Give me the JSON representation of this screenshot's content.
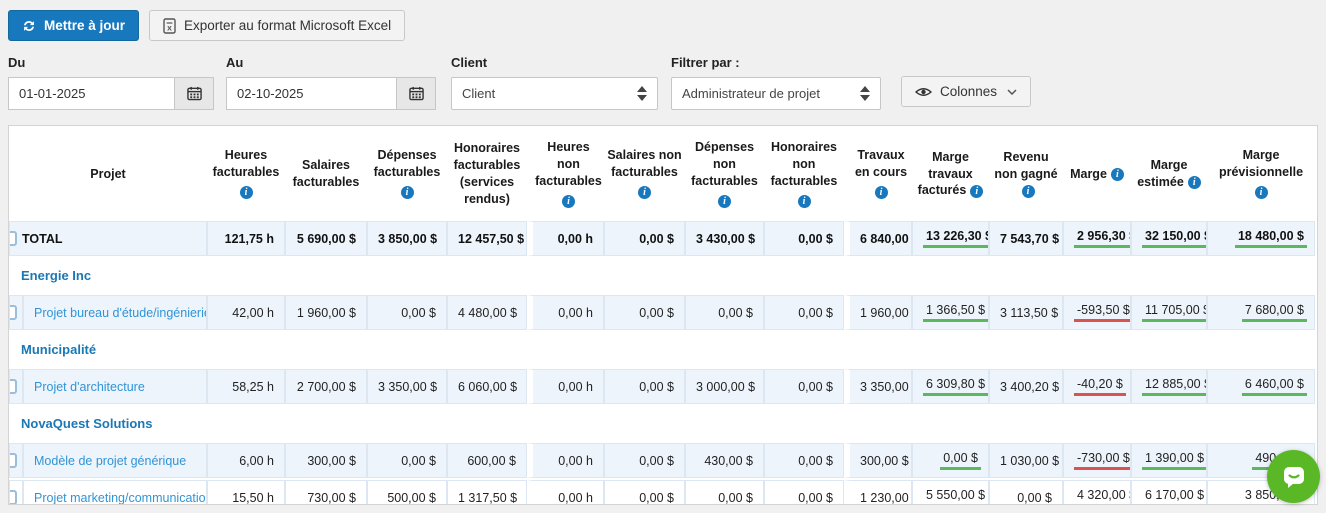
{
  "toolbar": {
    "update_label": "Mettre à jour",
    "export_label": "Exporter au format Microsoft Excel"
  },
  "filters": {
    "from": {
      "label": "Du",
      "value": "01-01-2025"
    },
    "to": {
      "label": "Au",
      "value": "02-10-2025"
    },
    "client": {
      "label": "Client",
      "selected": "Client"
    },
    "filter_by": {
      "label": "Filtrer par :",
      "selected": "Administrateur de projet"
    },
    "columns_button_label": "Colonnes"
  },
  "icons": {
    "refresh": "circular-arrows",
    "excel": "spreadsheet-file",
    "calendar": "calendar-grid",
    "eye": "eye",
    "chevron_down": "chevron-down",
    "select_arrows": "up-down-triangles",
    "info": "i",
    "chat": "speech-bubble-smile",
    "row_clip": "clipped-row-icon"
  },
  "colors": {
    "accent": "#1878be",
    "accent_border": "#13689e",
    "green_underline": "#5cb85c",
    "red_underline": "#d9534f",
    "project_link": "#3094d6",
    "group_blue": "#1a78b5",
    "stripe": "#eef4fb",
    "chat_green": "#5ab827"
  },
  "table": {
    "project_header": "Projet",
    "columns": [
      {
        "label": "Heures facturables",
        "info": "below"
      },
      {
        "label": "Salaires facturables",
        "info": null
      },
      {
        "label": "Dépenses facturables",
        "info": "below"
      },
      {
        "label": "Honoraires facturables (services rendus)",
        "info": null
      },
      {
        "label": "Heures non facturables",
        "info": "below"
      },
      {
        "label": "Salaires non facturables",
        "info": "below"
      },
      {
        "label": "Dépenses non facturables",
        "info": "below"
      },
      {
        "label": "Honoraires non facturables",
        "info": "below"
      },
      {
        "label": "Travaux en cours",
        "info": "below"
      },
      {
        "label": "Marge travaux facturés",
        "info": "inline"
      },
      {
        "label": "Revenu non gagné",
        "info": "inline"
      },
      {
        "label": "Marge",
        "info": "inline"
      },
      {
        "label": "Marge estimée",
        "info": "inline"
      },
      {
        "label": "Marge prévisionnelle",
        "info": "below"
      }
    ],
    "rows": [
      {
        "type": "total",
        "label": "TOTAL",
        "cells": [
          {
            "v": "121,75 h"
          },
          {
            "v": "5 690,00 $"
          },
          {
            "v": "3 850,00 $"
          },
          {
            "v": "12 457,50 $"
          },
          {
            "v": "0,00 h"
          },
          {
            "v": "0,00 $"
          },
          {
            "v": "3 430,00 $"
          },
          {
            "v": "0,00 $"
          },
          {
            "v": "6 840,00 $"
          },
          {
            "v": "13 226,30 $",
            "u": "green"
          },
          {
            "v": "7 543,70 $"
          },
          {
            "v": "2 956,30 $",
            "u": "green"
          },
          {
            "v": "32 150,00 $",
            "u": "green"
          },
          {
            "v": "18 480,00 $",
            "u": "green"
          }
        ]
      },
      {
        "type": "group",
        "label": "Energie Inc"
      },
      {
        "type": "project",
        "label": "Projet bureau d'étude/ingénierie",
        "cells": [
          {
            "v": "42,00 h"
          },
          {
            "v": "1 960,00 $"
          },
          {
            "v": "0,00 $"
          },
          {
            "v": "4 480,00 $"
          },
          {
            "v": "0,00 h"
          },
          {
            "v": "0,00 $"
          },
          {
            "v": "0,00 $"
          },
          {
            "v": "0,00 $"
          },
          {
            "v": "1 960,00 $"
          },
          {
            "v": "1 366,50 $",
            "u": "green"
          },
          {
            "v": "3 113,50 $"
          },
          {
            "v": "-593,50 $",
            "u": "red"
          },
          {
            "v": "11 705,00 $",
            "u": "green"
          },
          {
            "v": "7 680,00 $",
            "u": "green"
          }
        ]
      },
      {
        "type": "group",
        "label": "Municipalité"
      },
      {
        "type": "project",
        "label": "Projet d'architecture",
        "cells": [
          {
            "v": "58,25 h"
          },
          {
            "v": "2 700,00 $"
          },
          {
            "v": "3 350,00 $"
          },
          {
            "v": "6 060,00 $"
          },
          {
            "v": "0,00 h"
          },
          {
            "v": "0,00 $"
          },
          {
            "v": "3 000,00 $"
          },
          {
            "v": "0,00 $"
          },
          {
            "v": "3 350,00 $"
          },
          {
            "v": "6 309,80 $",
            "u": "green"
          },
          {
            "v": "3 400,20 $"
          },
          {
            "v": "-40,20 $",
            "u": "red"
          },
          {
            "v": "12 885,00 $",
            "u": "green"
          },
          {
            "v": "6 460,00 $",
            "u": "green"
          }
        ]
      },
      {
        "type": "group",
        "label": "NovaQuest Solutions"
      },
      {
        "type": "project",
        "label": "Modèle de projet générique",
        "cells": [
          {
            "v": "6,00 h"
          },
          {
            "v": "300,00 $"
          },
          {
            "v": "0,00 $"
          },
          {
            "v": "600,00 $"
          },
          {
            "v": "0,00 h"
          },
          {
            "v": "0,00 $"
          },
          {
            "v": "430,00 $"
          },
          {
            "v": "0,00 $"
          },
          {
            "v": "300,00 $"
          },
          {
            "v": "0,00 $",
            "u": "green"
          },
          {
            "v": "1 030,00 $"
          },
          {
            "v": "-730,00 $",
            "u": "red"
          },
          {
            "v": "1 390,00 $",
            "u": "green"
          },
          {
            "v": "490,00 $",
            "u": "green"
          }
        ]
      },
      {
        "type": "project",
        "label": "Projet marketing/communication",
        "cells": [
          {
            "v": "15,50 h"
          },
          {
            "v": "730,00 $"
          },
          {
            "v": "500,00 $"
          },
          {
            "v": "1 317,50 $"
          },
          {
            "v": "0,00 h"
          },
          {
            "v": "0,00 $"
          },
          {
            "v": "0,00 $"
          },
          {
            "v": "0,00 $"
          },
          {
            "v": "1 230,00 $"
          },
          {
            "v": "5 550,00 $",
            "u": "green"
          },
          {
            "v": "0,00 $"
          },
          {
            "v": "4 320,00 $",
            "u": "green"
          },
          {
            "v": "6 170,00 $",
            "u": "green"
          },
          {
            "v": "3 850,00 $",
            "u": "green"
          }
        ]
      }
    ]
  }
}
